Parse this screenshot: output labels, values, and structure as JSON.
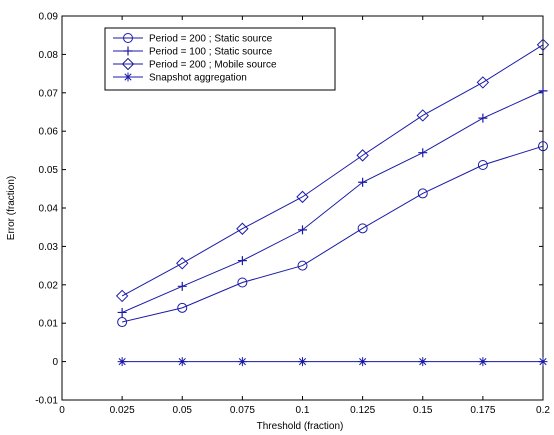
{
  "chart_data": {
    "type": "line",
    "title": "",
    "xlabel": "Threshold (fraction)",
    "ylabel": "Error (fraction)",
    "xlim": [
      0,
      0.2
    ],
    "ylim": [
      -0.01,
      0.09
    ],
    "xticks": [
      "0",
      "0.025",
      "0.05",
      "0.075",
      "0.1",
      "0.125",
      "0.15",
      "0.175",
      "0.2"
    ],
    "yticks": [
      "-0.01",
      "0",
      "0.01",
      "0.02",
      "0.03",
      "0.04",
      "0.05",
      "0.06",
      "0.07",
      "0.08",
      "0.09"
    ],
    "x": [
      0.025,
      0.05,
      0.075,
      0.1,
      0.125,
      0.15,
      0.175,
      0.2
    ],
    "grid": false,
    "legend_position": "top-left",
    "line_color": "#1a1aa8",
    "series": [
      {
        "name": "Period = 200 ; Static source",
        "marker": "circle",
        "values": [
          0.0103,
          0.014,
          0.0206,
          0.025,
          0.0347,
          0.0438,
          0.0512,
          0.0561
        ]
      },
      {
        "name": "Period = 100 ; Static source",
        "marker": "plus",
        "values": [
          0.0128,
          0.0196,
          0.0263,
          0.0343,
          0.0467,
          0.0544,
          0.0634,
          0.0705
        ]
      },
      {
        "name": "Period = 200 ; Mobile source",
        "marker": "diamond",
        "values": [
          0.0171,
          0.0256,
          0.0346,
          0.0429,
          0.0537,
          0.0641,
          0.0727,
          0.0825
        ]
      },
      {
        "name": "Snapshot aggregation",
        "marker": "star",
        "values": [
          0,
          0,
          0,
          0,
          0,
          0,
          0,
          0
        ]
      }
    ]
  }
}
